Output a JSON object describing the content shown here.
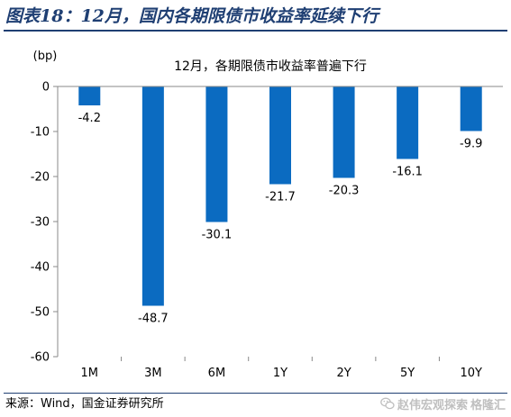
{
  "figure": {
    "title": "图表18：12月，国内各期限债市收益率延续下行",
    "source": "来源：Wind，国金证券研究所"
  },
  "watermark": {
    "text": "赵伟宏观探索",
    "text2": "格隆汇",
    "icon": "wechat-icon"
  },
  "chart_data": {
    "type": "bar",
    "title": "12月，各期限债市收益率普遍下行",
    "unit_label": "(bp)",
    "categories": [
      "1M",
      "3M",
      "6M",
      "1Y",
      "2Y",
      "5Y",
      "10Y"
    ],
    "values": [
      -4.2,
      -48.7,
      -30.1,
      -21.7,
      -20.3,
      -16.1,
      -9.9
    ],
    "data_labels": [
      "-4.2",
      "-48.7",
      "-30.1",
      "-21.7",
      "-20.3",
      "-16.1",
      "-9.9"
    ],
    "ylim": [
      -60,
      0
    ],
    "yticks": [
      0,
      -10,
      -20,
      -30,
      -40,
      -50,
      -60
    ],
    "ytick_labels": [
      "0",
      "-10",
      "-20",
      "-30",
      "-40",
      "-50",
      "-60"
    ],
    "grid": false,
    "legend": "none",
    "bar_color": "#0b6bc1"
  }
}
